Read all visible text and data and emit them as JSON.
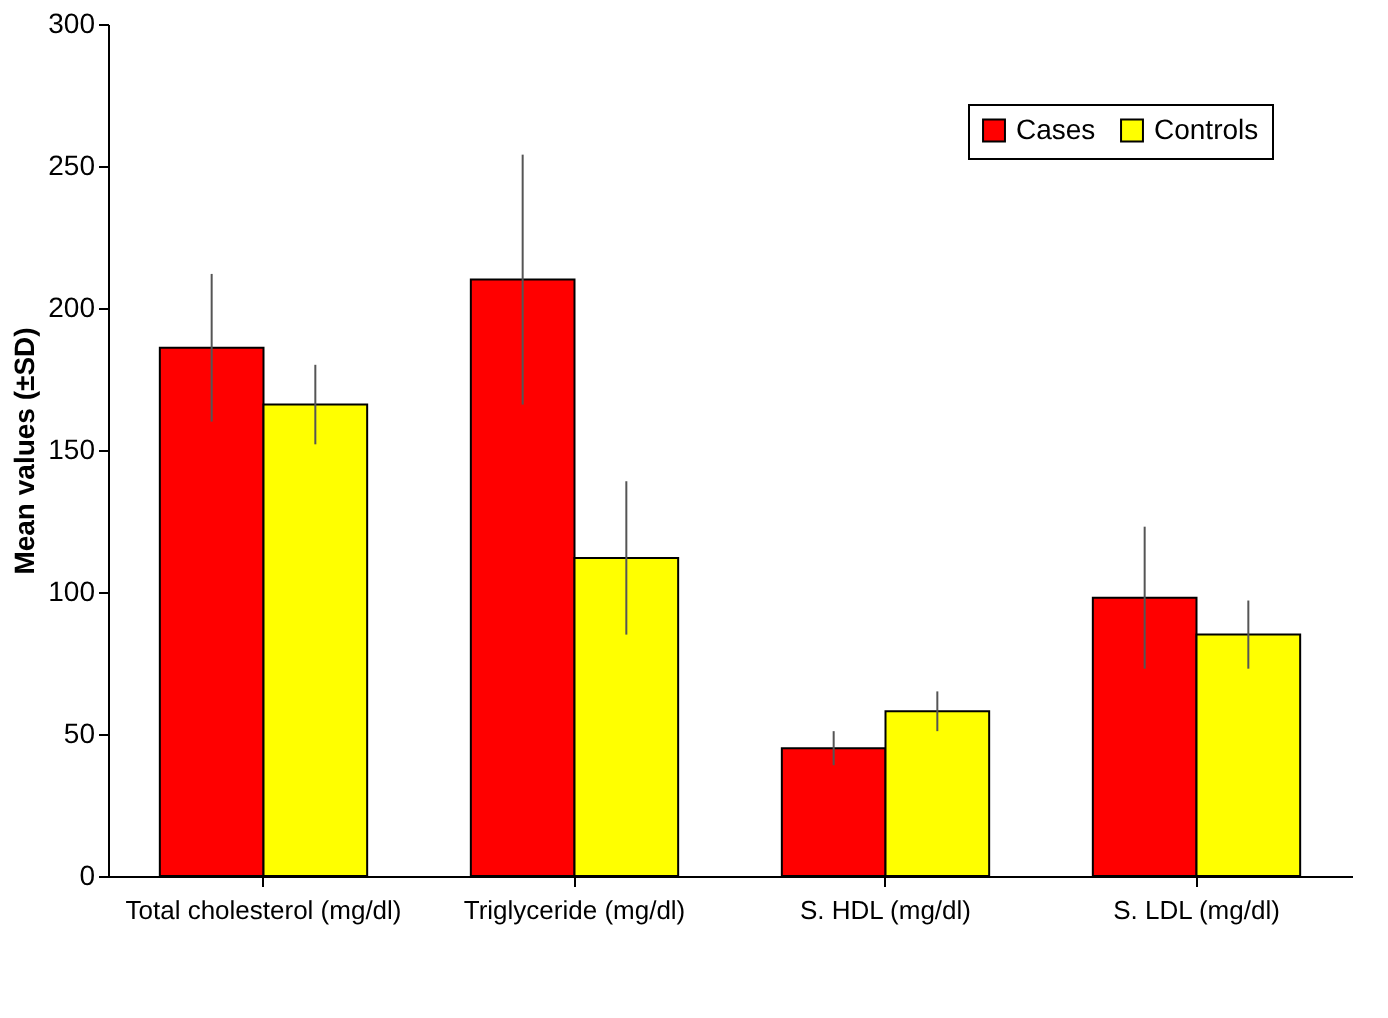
{
  "chart_data": {
    "type": "bar",
    "ylabel": "Mean values (±SD)",
    "categories": [
      "Total cholesterol (mg/dl)",
      "Triglyceride (mg/dl)",
      "S. HDL (mg/dl)",
      "S. LDL (mg/dl)"
    ],
    "series": [
      {
        "name": "Cases",
        "color": "#ff0000",
        "values": [
          186,
          210,
          45,
          98
        ],
        "errors": [
          26,
          44,
          6,
          25
        ]
      },
      {
        "name": "Controls",
        "color": "#ffff00",
        "values": [
          166,
          112,
          58,
          85
        ],
        "errors": [
          14,
          27,
          7,
          12
        ]
      }
    ],
    "ylim": [
      0,
      300
    ],
    "yticks": [
      0,
      50,
      100,
      150,
      200,
      250,
      300
    ],
    "grid": false,
    "legend": "top right"
  }
}
